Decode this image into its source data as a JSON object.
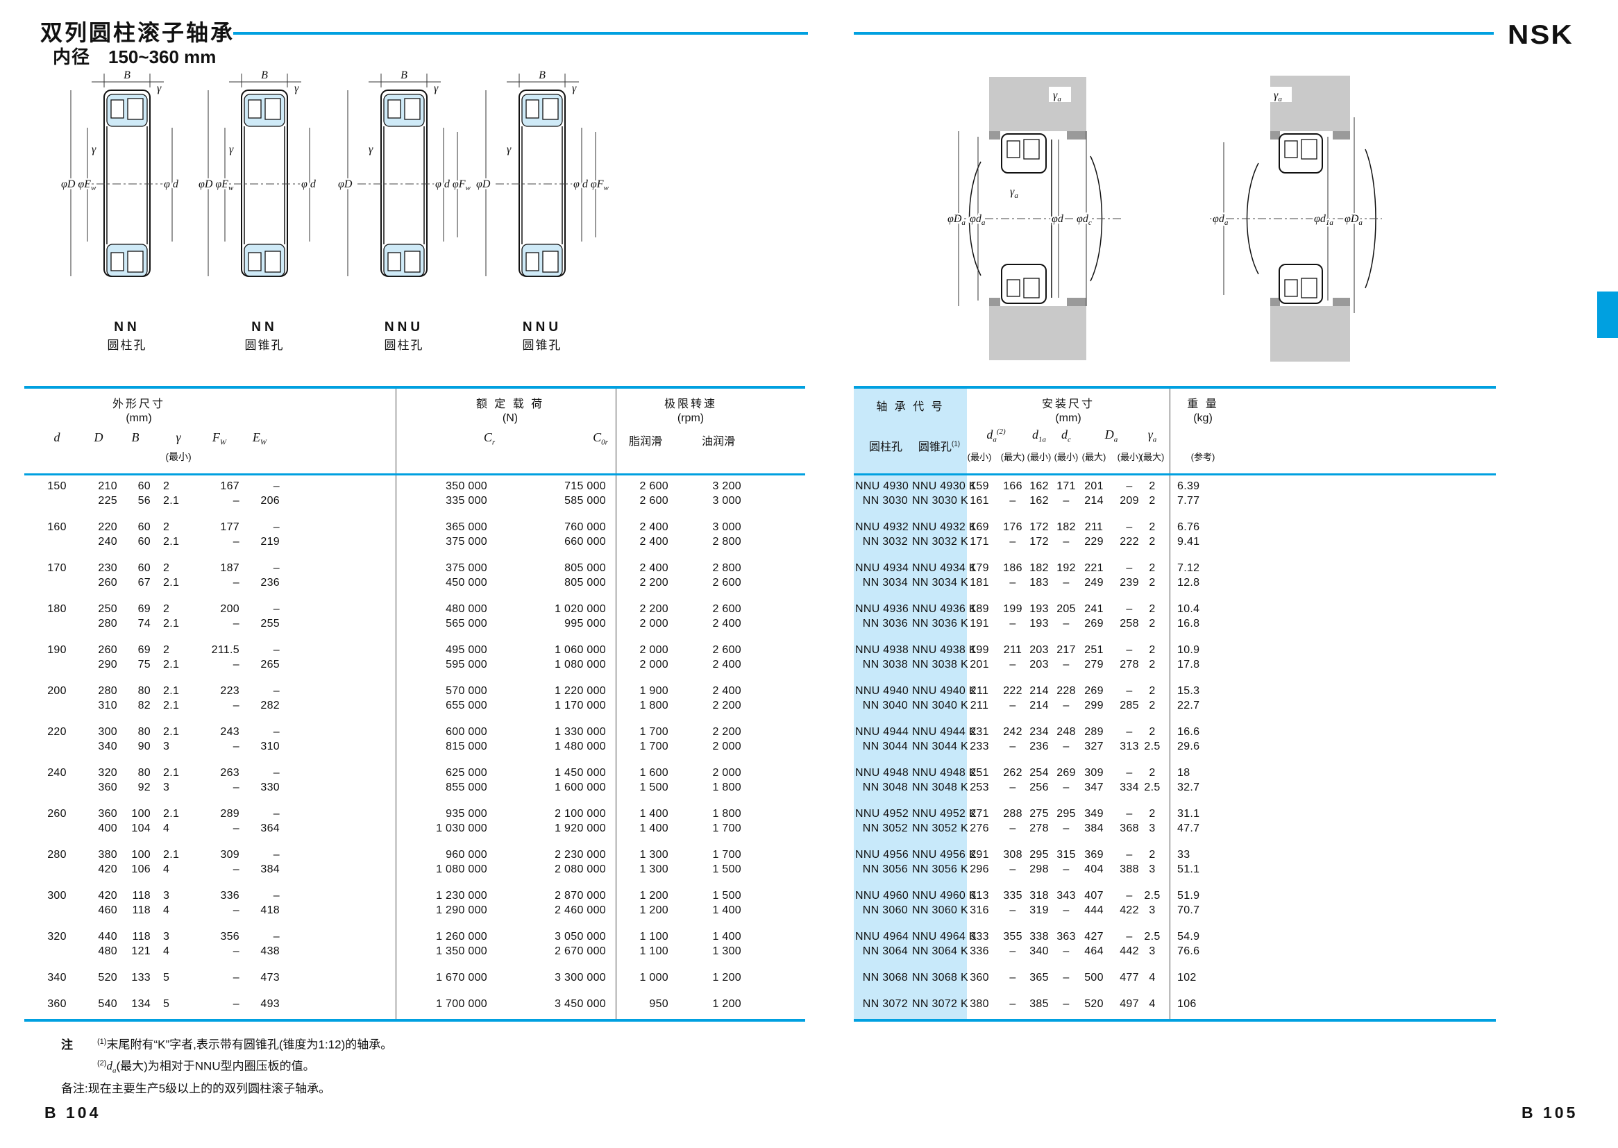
{
  "colors": {
    "accent": "#00a0e0",
    "code_bg": "#c8e9fa",
    "dia_fill": "#cfeaf7",
    "housing": "#c9c9c9"
  },
  "page": {
    "title": "双列圆柱滚子轴承",
    "bore_label": "内径",
    "bore_range": "150~360 mm",
    "brand": "NSK",
    "page_left": "B 104",
    "page_right": "B 105"
  },
  "diagrams": {
    "b": [
      {
        "top": "B",
        "g1": "γ",
        "g2": "γ",
        "lm": "φD φE",
        "ls": "w",
        "rm": "φ d",
        "rs": "",
        "type": "NN",
        "bore": "圆柱孔"
      },
      {
        "top": "B",
        "g1": "γ",
        "g2": "γ",
        "lm": "φD φE",
        "ls": "w",
        "rm": "φ d",
        "rs": "",
        "type": "NN",
        "bore": "圆锥孔"
      },
      {
        "top": "B",
        "g1": "γ",
        "g2": "γ",
        "lm": "φD",
        "ls": "",
        "rm": "φ d φF",
        "rs": "w",
        "type": "NNU",
        "bore": "圆柱孔"
      },
      {
        "top": "B",
        "g1": "γ",
        "g2": "γ",
        "lm": "φD",
        "ls": "",
        "rm": "φ d φF",
        "rs": "w",
        "type": "NNU",
        "bore": "圆锥孔"
      }
    ],
    "m": [
      {
        "g1m": "γ",
        "g1s": "a",
        "g2m": "γ",
        "g2s": "a",
        "l1m": "φD",
        "l1s": "a",
        "l2m": "φd",
        "l2s": "a",
        "l3m": "φd",
        "l3s": "",
        "l4m": "φd",
        "l4s": "c"
      },
      {
        "g1m": "γ",
        "g1s": "a",
        "l1m": "φd",
        "l1s": "a",
        "l2m": "φd",
        "l2s": "1a",
        "l3m": "φD",
        "l3s": "a"
      }
    ]
  },
  "left_table": {
    "h_dim": "外形尺寸",
    "h_dim_u": "(mm)",
    "h_load": "额 定 载 荷",
    "h_load_u": "(N)",
    "h_speed": "极限转速",
    "h_speed_u": "(rpm)",
    "c_d": "d",
    "c_D": "D",
    "c_B": "B",
    "c_r": "γ",
    "c_r_min": "(最小)",
    "c_Fw_m": "F",
    "c_Fw_s": "W",
    "c_Ew_m": "E",
    "c_Ew_s": "W",
    "c_Cr_m": "C",
    "c_Cr_s": "r",
    "c_C0r_m": "C",
    "c_C0r_s": "0r",
    "c_grease": "脂润滑",
    "c_oil": "油润滑",
    "rows": [
      {
        "d": "150",
        "lines": [
          [
            "210",
            "60",
            "2",
            "167",
            "–",
            "350 000",
            "715 000",
            "2 600",
            "3 200"
          ],
          [
            "225",
            "56",
            "2.1",
            "–",
            "206",
            "335 000",
            "585 000",
            "2 600",
            "3 000"
          ]
        ]
      },
      {
        "d": "160",
        "lines": [
          [
            "220",
            "60",
            "2",
            "177",
            "–",
            "365 000",
            "760 000",
            "2 400",
            "3 000"
          ],
          [
            "240",
            "60",
            "2.1",
            "–",
            "219",
            "375 000",
            "660 000",
            "2 400",
            "2 800"
          ]
        ]
      },
      {
        "d": "170",
        "lines": [
          [
            "230",
            "60",
            "2",
            "187",
            "–",
            "375 000",
            "805 000",
            "2 400",
            "2 800"
          ],
          [
            "260",
            "67",
            "2.1",
            "–",
            "236",
            "450 000",
            "805 000",
            "2 200",
            "2 600"
          ]
        ]
      },
      {
        "d": "180",
        "lines": [
          [
            "250",
            "69",
            "2",
            "200",
            "–",
            "480 000",
            "1 020 000",
            "2 200",
            "2 600"
          ],
          [
            "280",
            "74",
            "2.1",
            "–",
            "255",
            "565 000",
            "995 000",
            "2 000",
            "2 400"
          ]
        ]
      },
      {
        "d": "190",
        "lines": [
          [
            "260",
            "69",
            "2",
            "211.5",
            "–",
            "495 000",
            "1 060 000",
            "2 000",
            "2 600"
          ],
          [
            "290",
            "75",
            "2.1",
            "–",
            "265",
            "595 000",
            "1 080 000",
            "2 000",
            "2 400"
          ]
        ]
      },
      {
        "d": "200",
        "lines": [
          [
            "280",
            "80",
            "2.1",
            "223",
            "–",
            "570 000",
            "1 220 000",
            "1 900",
            "2 400"
          ],
          [
            "310",
            "82",
            "2.1",
            "–",
            "282",
            "655 000",
            "1 170 000",
            "1 800",
            "2 200"
          ]
        ]
      },
      {
        "d": "220",
        "lines": [
          [
            "300",
            "80",
            "2.1",
            "243",
            "–",
            "600 000",
            "1 330 000",
            "1 700",
            "2 200"
          ],
          [
            "340",
            "90",
            "3",
            "–",
            "310",
            "815 000",
            "1 480 000",
            "1 700",
            "2 000"
          ]
        ]
      },
      {
        "d": "240",
        "lines": [
          [
            "320",
            "80",
            "2.1",
            "263",
            "–",
            "625 000",
            "1 450 000",
            "1 600",
            "2 000"
          ],
          [
            "360",
            "92",
            "3",
            "–",
            "330",
            "855 000",
            "1 600 000",
            "1 500",
            "1 800"
          ]
        ]
      },
      {
        "d": "260",
        "lines": [
          [
            "360",
            "100",
            "2.1",
            "289",
            "–",
            "935 000",
            "2 100 000",
            "1 400",
            "1 800"
          ],
          [
            "400",
            "104",
            "4",
            "–",
            "364",
            "1 030 000",
            "1 920 000",
            "1 400",
            "1 700"
          ]
        ]
      },
      {
        "d": "280",
        "lines": [
          [
            "380",
            "100",
            "2.1",
            "309",
            "–",
            "960 000",
            "2 230 000",
            "1 300",
            "1 700"
          ],
          [
            "420",
            "106",
            "4",
            "–",
            "384",
            "1 080 000",
            "2 080 000",
            "1 300",
            "1 500"
          ]
        ]
      },
      {
        "d": "300",
        "lines": [
          [
            "420",
            "118",
            "3",
            "336",
            "–",
            "1 230 000",
            "2 870 000",
            "1 200",
            "1 500"
          ],
          [
            "460",
            "118",
            "4",
            "–",
            "418",
            "1 290 000",
            "2 460 000",
            "1 200",
            "1 400"
          ]
        ]
      },
      {
        "d": "320",
        "lines": [
          [
            "440",
            "118",
            "3",
            "356",
            "–",
            "1 260 000",
            "3 050 000",
            "1 100",
            "1 400"
          ],
          [
            "480",
            "121",
            "4",
            "–",
            "438",
            "1 350 000",
            "2 670 000",
            "1 100",
            "1 300"
          ]
        ]
      },
      {
        "d": "340",
        "lines": [
          [
            "520",
            "133",
            "5",
            "–",
            "473",
            "1 670 000",
            "3 300 000",
            "1 000",
            "1 200"
          ]
        ]
      },
      {
        "d": "360",
        "lines": [
          [
            "540",
            "134",
            "5",
            "–",
            "493",
            "1 700 000",
            "3 450 000",
            "950",
            "1 200"
          ]
        ]
      }
    ]
  },
  "right_table": {
    "h_code": "轴 承 代 号",
    "h_mount": "安装尺寸",
    "h_mount_u": "(mm)",
    "h_wt": "重 量",
    "h_wt_u": "(kg)",
    "c_cyl": "圆柱孔",
    "c_taper": "圆锥孔",
    "c_taper_sup": "(1)",
    "c_da_m": "d",
    "c_da_s": "a",
    "c_da_sup": "(2)",
    "c_d1a_m": "d",
    "c_d1a_s": "1a",
    "c_dc_m": "d",
    "c_dc_s": "c",
    "c_Da_m": "D",
    "c_Da_s": "a",
    "c_ra_m": "γ",
    "c_ra_s": "a",
    "sub": [
      "(最小)",
      "(最大)",
      "(最小)",
      "(最小)",
      "(最大)",
      "(最小)",
      "(最大)"
    ],
    "c_ref": "(参考)",
    "rows": [
      {
        "lines": [
          {
            "c": "NNU 4930",
            "t": "NNU 4930 K",
            "v": [
              "159",
              "166",
              "162",
              "171",
              "201",
              "–",
              "2"
            ],
            "w": "6.39"
          },
          {
            "c": "NN 3030",
            "t": "NN 3030 K",
            "v": [
              "161",
              "–",
              "162",
              "–",
              "214",
              "209",
              "2"
            ],
            "w": "7.77"
          }
        ]
      },
      {
        "lines": [
          {
            "c": "NNU 4932",
            "t": "NNU 4932 K",
            "v": [
              "169",
              "176",
              "172",
              "182",
              "211",
              "–",
              "2"
            ],
            "w": "6.76"
          },
          {
            "c": "NN 3032",
            "t": "NN 3032 K",
            "v": [
              "171",
              "–",
              "172",
              "–",
              "229",
              "222",
              "2"
            ],
            "w": "9.41"
          }
        ]
      },
      {
        "lines": [
          {
            "c": "NNU 4934",
            "t": "NNU 4934 K",
            "v": [
              "179",
              "186",
              "182",
              "192",
              "221",
              "–",
              "2"
            ],
            "w": "7.12"
          },
          {
            "c": "NN 3034",
            "t": "NN 3034 K",
            "v": [
              "181",
              "–",
              "183",
              "–",
              "249",
              "239",
              "2"
            ],
            "w": "12.8"
          }
        ]
      },
      {
        "lines": [
          {
            "c": "NNU 4936",
            "t": "NNU 4936 K",
            "v": [
              "189",
              "199",
              "193",
              "205",
              "241",
              "–",
              "2"
            ],
            "w": "10.4"
          },
          {
            "c": "NN 3036",
            "t": "NN 3036 K",
            "v": [
              "191",
              "–",
              "193",
              "–",
              "269",
              "258",
              "2"
            ],
            "w": "16.8"
          }
        ]
      },
      {
        "lines": [
          {
            "c": "NNU 4938",
            "t": "NNU 4938 K",
            "v": [
              "199",
              "211",
              "203",
              "217",
              "251",
              "–",
              "2"
            ],
            "w": "10.9"
          },
          {
            "c": "NN 3038",
            "t": "NN 3038 K",
            "v": [
              "201",
              "–",
              "203",
              "–",
              "279",
              "278",
              "2"
            ],
            "w": "17.8"
          }
        ]
      },
      {
        "lines": [
          {
            "c": "NNU 4940",
            "t": "NNU 4940 K",
            "v": [
              "211",
              "222",
              "214",
              "228",
              "269",
              "–",
              "2"
            ],
            "w": "15.3"
          },
          {
            "c": "NN 3040",
            "t": "NN 3040 K",
            "v": [
              "211",
              "–",
              "214",
              "–",
              "299",
              "285",
              "2"
            ],
            "w": "22.7"
          }
        ]
      },
      {
        "lines": [
          {
            "c": "NNU 4944",
            "t": "NNU 4944 K",
            "v": [
              "231",
              "242",
              "234",
              "248",
              "289",
              "–",
              "2"
            ],
            "w": "16.6"
          },
          {
            "c": "NN 3044",
            "t": "NN 3044 K",
            "v": [
              "233",
              "–",
              "236",
              "–",
              "327",
              "313",
              "2.5"
            ],
            "w": "29.6"
          }
        ]
      },
      {
        "lines": [
          {
            "c": "NNU 4948",
            "t": "NNU 4948 K",
            "v": [
              "251",
              "262",
              "254",
              "269",
              "309",
              "–",
              "2"
            ],
            "w": "18"
          },
          {
            "c": "NN 3048",
            "t": "NN 3048 K",
            "v": [
              "253",
              "–",
              "256",
              "–",
              "347",
              "334",
              "2.5"
            ],
            "w": "32.7"
          }
        ]
      },
      {
        "lines": [
          {
            "c": "NNU 4952",
            "t": "NNU 4952 K",
            "v": [
              "271",
              "288",
              "275",
              "295",
              "349",
              "–",
              "2"
            ],
            "w": "31.1"
          },
          {
            "c": "NN 3052",
            "t": "NN 3052 K",
            "v": [
              "276",
              "–",
              "278",
              "–",
              "384",
              "368",
              "3"
            ],
            "w": "47.7"
          }
        ]
      },
      {
        "lines": [
          {
            "c": "NNU 4956",
            "t": "NNU 4956 K",
            "v": [
              "291",
              "308",
              "295",
              "315",
              "369",
              "–",
              "2"
            ],
            "w": "33"
          },
          {
            "c": "NN 3056",
            "t": "NN 3056 K",
            "v": [
              "296",
              "–",
              "298",
              "–",
              "404",
              "388",
              "3"
            ],
            "w": "51.1"
          }
        ]
      },
      {
        "lines": [
          {
            "c": "NNU 4960",
            "t": "NNU 4960 K",
            "v": [
              "313",
              "335",
              "318",
              "343",
              "407",
              "–",
              "2.5"
            ],
            "w": "51.9"
          },
          {
            "c": "NN 3060",
            "t": "NN 3060 K",
            "v": [
              "316",
              "–",
              "319",
              "–",
              "444",
              "422",
              "3"
            ],
            "w": "70.7"
          }
        ]
      },
      {
        "lines": [
          {
            "c": "NNU 4964",
            "t": "NNU 4964 K",
            "v": [
              "333",
              "355",
              "338",
              "363",
              "427",
              "–",
              "2.5"
            ],
            "w": "54.9"
          },
          {
            "c": "NN 3064",
            "t": "NN 3064 K",
            "v": [
              "336",
              "–",
              "340",
              "–",
              "464",
              "442",
              "3"
            ],
            "w": "76.6"
          }
        ]
      },
      {
        "lines": [
          {
            "c": "NN 3068",
            "t": "NN 3068 K",
            "v": [
              "360",
              "–",
              "365",
              "–",
              "500",
              "477",
              "4"
            ],
            "w": "102"
          }
        ]
      },
      {
        "lines": [
          {
            "c": "NN 3072",
            "t": "NN 3072 K",
            "v": [
              "380",
              "–",
              "385",
              "–",
              "520",
              "497",
              "4"
            ],
            "w": "106"
          }
        ]
      }
    ]
  },
  "notes": {
    "label": "注",
    "n1_sup": "(1)",
    "n1": "末尾附有“K”字者,表示带有圆锥孔(锥度为1:12)的轴承。",
    "n2_sup": "(2)",
    "n2_sym_m": "d",
    "n2_sym_s": "a",
    "n2": "(最大)为相对于NNU型内圈压板的值。",
    "remark": "备注:现在主要生产5级以上的的双列圆柱滚子轴承。"
  }
}
